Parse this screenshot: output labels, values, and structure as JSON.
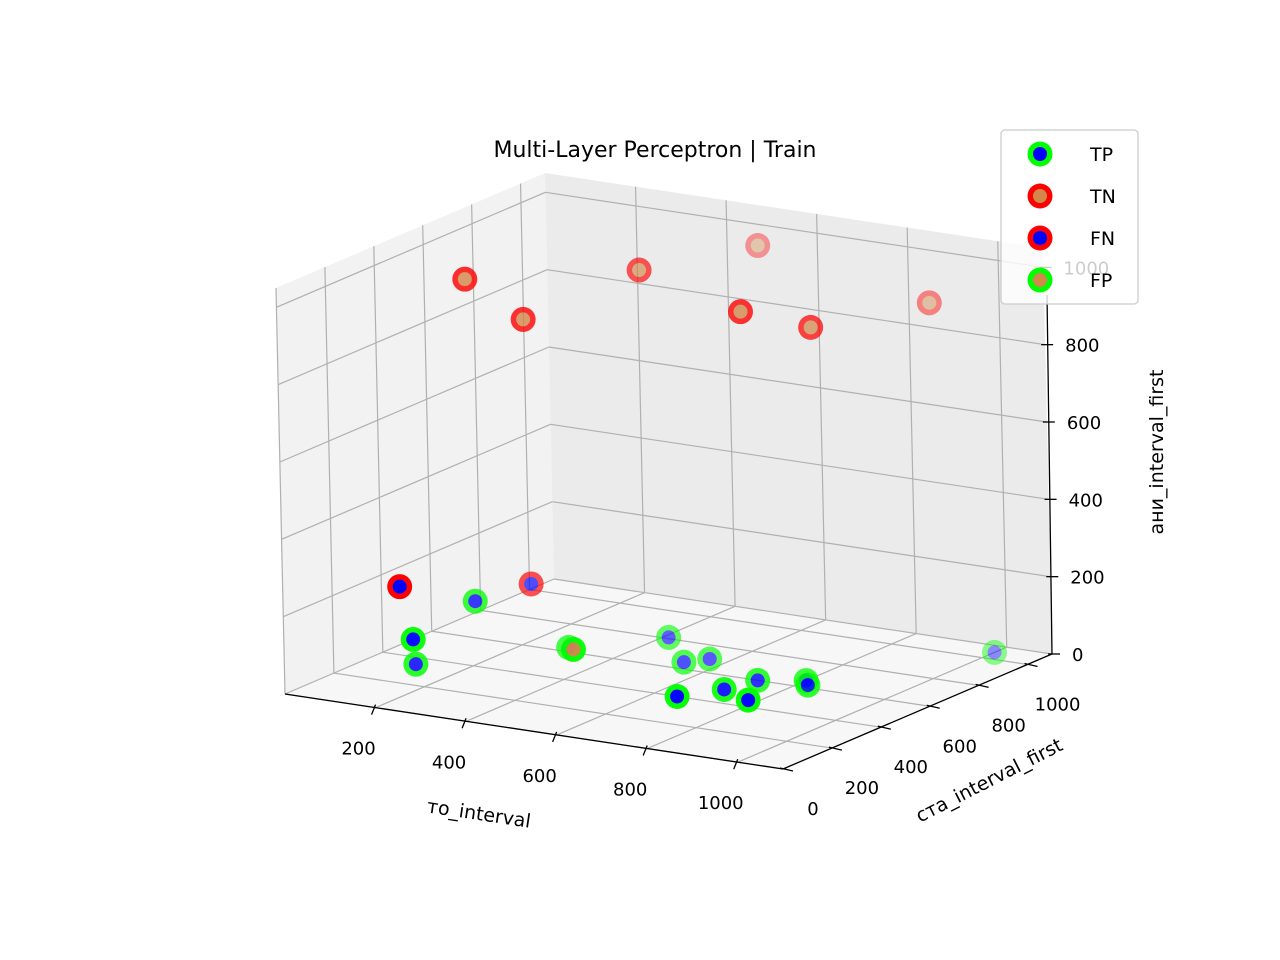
{
  "chart_data": {
    "type": "scatter",
    "projection": "3d",
    "title": "Multi-Layer Perceptron | Train",
    "xlabel": "то_interval",
    "ylabel": "ста_interval_first",
    "zlabel": "ани_interval_first",
    "xlim": [
      0,
      1100
    ],
    "ylim": [
      0,
      1100
    ],
    "zlim": [
      0,
      1050
    ],
    "x_ticks": [
      200,
      400,
      600,
      800,
      1000
    ],
    "y_ticks": [
      0,
      200,
      400,
      600,
      800,
      1000
    ],
    "z_ticks": [
      0,
      200,
      400,
      600,
      800,
      1000
    ],
    "x_tick_labels": [
      "200",
      "400",
      "600",
      "800",
      "1000"
    ],
    "y_tick_labels": [
      "0",
      "200",
      "400",
      "600",
      "800",
      "1000"
    ],
    "z_tick_labels": [
      "0",
      "200",
      "400",
      "600",
      "800",
      "1000"
    ],
    "grid": true,
    "legend_position": "top-right",
    "view": {
      "elev": 12,
      "azim": -60
    },
    "legend": [
      {
        "label": "TP",
        "edge": "#00ff00",
        "face": "#0000ff"
      },
      {
        "label": "TN",
        "edge": "#ff0000",
        "face": "#d2884a"
      },
      {
        "label": "FN",
        "edge": "#ff0000",
        "face": "#0000ff"
      },
      {
        "label": "FP",
        "edge": "#00ff00",
        "face": "#d2884a"
      }
    ],
    "series": [
      {
        "name": "TP",
        "edge": "#00ff00",
        "face": "#0000ff",
        "points": [
          [
            100,
            350,
            0
          ],
          [
            150,
            250,
            100
          ],
          [
            180,
            450,
            150
          ],
          [
            330,
            550,
            30
          ],
          [
            470,
            700,
            40
          ],
          [
            530,
            650,
            0
          ],
          [
            560,
            700,
            0
          ],
          [
            650,
            400,
            0
          ],
          [
            700,
            500,
            0
          ],
          [
            720,
            600,
            0
          ],
          [
            780,
            450,
            0
          ],
          [
            800,
            650,
            0
          ],
          [
            820,
            620,
            0
          ],
          [
            1000,
            1050,
            0
          ]
        ]
      },
      {
        "name": "TN",
        "edge": "#ff0000",
        "face": "#d2884a",
        "points": [
          [
            200,
            400,
            1000
          ],
          [
            300,
            450,
            900
          ],
          [
            450,
            650,
            1000
          ],
          [
            550,
            950,
            1000
          ],
          [
            700,
            600,
            950
          ],
          [
            800,
            700,
            900
          ],
          [
            900,
            1000,
            900
          ]
        ]
      },
      {
        "name": "FN",
        "edge": "#ff0000",
        "face": "#0000ff",
        "points": [
          [
            150,
            200,
            250
          ],
          [
            250,
            550,
            180
          ]
        ]
      },
      {
        "name": "FP",
        "edge": "#00ff00",
        "face": "#d2884a",
        "points": [
          [
            450,
            350,
            100
          ]
        ]
      }
    ]
  }
}
